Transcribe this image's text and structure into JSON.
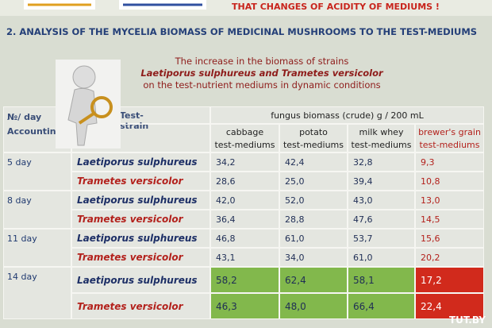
{
  "banner": "THAT CHANGES OF ACIDITY OF MEDIUMS !",
  "title": "2. ANALYSIS OF THE MYCELIA BIOMASS OF MEDICINAL MUSHROOMS TO THE TEST-MEDIUMS",
  "subtitle": [
    "The increase in the biomass of strains",
    "Laetiporus sulphureus and Trametes versicolor",
    "on the test-nutrient mediums in dynamic conditions"
  ],
  "table": {
    "header": {
      "day": [
        "№/ day",
        "Accounting"
      ],
      "strain": "Test-strain",
      "group": "fungus biomass (crude) g / 200 mL",
      "columns": [
        [
          "cabbage",
          "test-mediums"
        ],
        [
          "potato",
          "test-mediums"
        ],
        [
          "milk whey",
          "test-mediums"
        ],
        [
          "brewer's grain",
          "test-mediums"
        ]
      ]
    },
    "rows": [
      {
        "day": "5 day",
        "strains": [
          {
            "name": "Laetiporus sulphureus",
            "values": [
              "34,2",
              "42,4",
              "32,8",
              "9,3"
            ]
          },
          {
            "name": "Trametes versicolor",
            "values": [
              "28,6",
              "25,0",
              "39,4",
              "10,8"
            ]
          }
        ]
      },
      {
        "day": "8 day",
        "strains": [
          {
            "name": "Laetiporus sulphureus",
            "values": [
              "42,0",
              "52,0",
              "43,0",
              "13,0"
            ]
          },
          {
            "name": "Trametes versicolor",
            "values": [
              "36,4",
              "28,8",
              "47,6",
              "14,5"
            ]
          }
        ]
      },
      {
        "day": "11 day",
        "strains": [
          {
            "name": "Laetiporus sulphureus",
            "values": [
              "46,8",
              "61,0",
              "53,7",
              "15,6"
            ]
          },
          {
            "name": "Trametes versicolor",
            "values": [
              "43,1",
              "34,0",
              "61,0",
              "20,2"
            ]
          }
        ]
      },
      {
        "day": "14 day",
        "strains": [
          {
            "name": "Laetiporus sulphureus",
            "values": [
              "58,2",
              "62,4",
              "58,1",
              "17,2"
            ]
          },
          {
            "name": "Trametes versicolor",
            "values": [
              "46,3",
              "48,0",
              "66,4",
              "22,4"
            ]
          }
        ]
      }
    ]
  },
  "watermark": "TUT.BY"
}
